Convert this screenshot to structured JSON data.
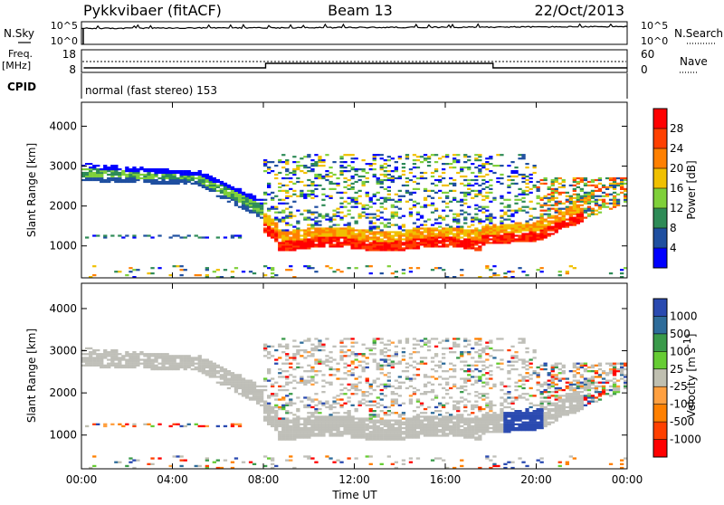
{
  "header": {
    "station": "Pykkvibaer (fitACF)",
    "beam": "Beam 13",
    "date": "22/Oct/2013"
  },
  "noise_panel": {
    "left_label": "N.Sky",
    "right_label": "N.Search",
    "left_ticks": [
      "10^5",
      "10^0"
    ],
    "right_ticks": [
      "10^5",
      "10^0"
    ]
  },
  "freq_panel": {
    "left_label_line1": "Freq.",
    "left_label_line2": "[MHz]",
    "right_label": "Nave",
    "left_ticks": [
      "18",
      "8"
    ],
    "right_ticks": [
      "60",
      "0"
    ]
  },
  "cpid_panel": {
    "label": "CPID",
    "text": "normal (fast stereo) 153"
  },
  "colors": {
    "power_scale": [
      "#0000ff",
      "#1f4fa0",
      "#2e8b57",
      "#7fd03a",
      "#f0c000",
      "#ff8000",
      "#ff4000",
      "#ff0000"
    ],
    "velocity_scale": [
      "#2a4ab0",
      "#2e6c9a",
      "#3a9a4a",
      "#66cc33",
      "#bfbfb0",
      "#ffa040",
      "#ff8000",
      "#ff4000",
      "#ff0000"
    ],
    "ground_scatter": "#bfbfb8"
  },
  "chart_data": [
    {
      "type": "heatmap",
      "name": "power",
      "ylabel": "Slant Range [km]",
      "ylim": [
        200,
        4600
      ],
      "yticks": [
        "1000",
        "2000",
        "3000",
        "4000"
      ],
      "yvalues": [
        1000,
        2000,
        3000,
        4000
      ],
      "xticks": [
        "00:00",
        "04:00",
        "08:00",
        "12:00",
        "16:00",
        "20:00",
        "00:00"
      ],
      "xvalues": [
        0,
        4,
        8,
        12,
        16,
        20,
        24
      ],
      "colorbar": {
        "label": "Power [dB]",
        "ticks": [
          "4",
          "8",
          "12",
          "16",
          "20",
          "24",
          "28"
        ]
      }
    },
    {
      "type": "heatmap",
      "name": "velocity",
      "ylabel": "Slant Range [km]",
      "ylim": [
        200,
        4600
      ],
      "yticks": [
        "1000",
        "2000",
        "3000",
        "4000"
      ],
      "yvalues": [
        1000,
        2000,
        3000,
        4000
      ],
      "xticks": [
        "00:00",
        "04:00",
        "08:00",
        "12:00",
        "16:00",
        "20:00",
        "00:00"
      ],
      "xvalues": [
        0,
        4,
        8,
        12,
        16,
        20,
        24
      ],
      "xlabel": "Time UT",
      "colorbar": {
        "label": "Velocity [m s",
        "label_sup": "-1",
        "label_end": "]",
        "ticks": [
          "1000",
          "500",
          "100",
          "25",
          "-25",
          "-100",
          "-500",
          "-1000"
        ]
      }
    }
  ]
}
